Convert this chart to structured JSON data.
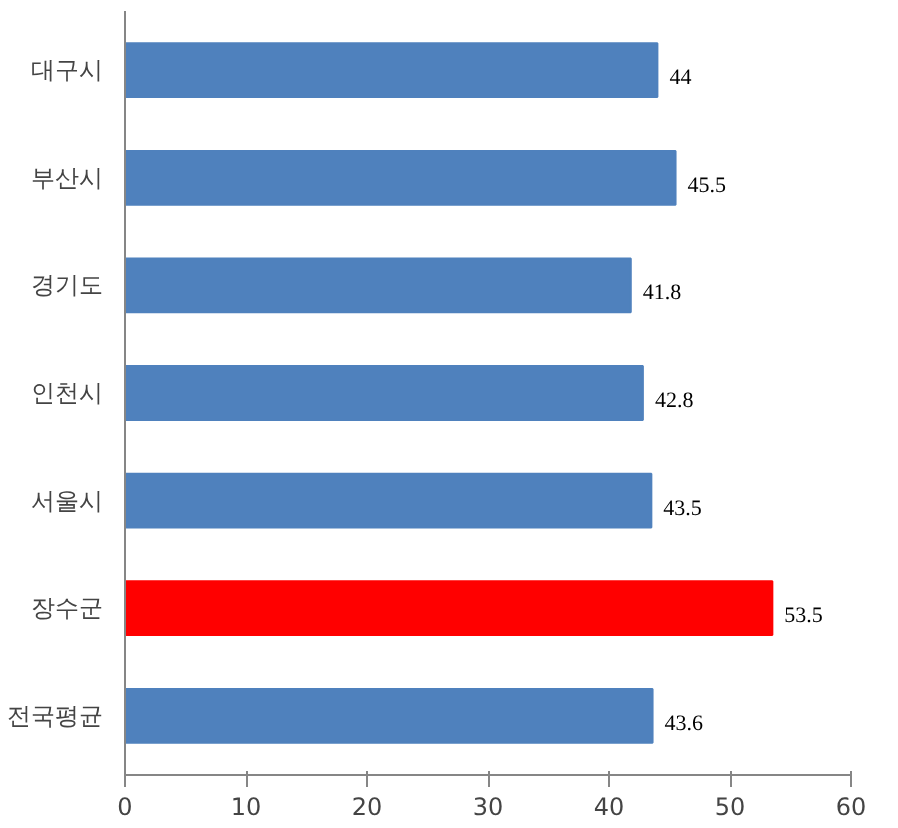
{
  "chart_data": {
    "type": "bar",
    "orientation": "horizontal",
    "categories": [
      "대구시",
      "부산시",
      "경기도",
      "인천시",
      "서울시",
      "장수군",
      "전국평균"
    ],
    "values": [
      44,
      45.5,
      41.8,
      42.8,
      43.5,
      53.5,
      43.6
    ],
    "colors": [
      "#4f81bd",
      "#4f81bd",
      "#4f81bd",
      "#4f81bd",
      "#4f81bd",
      "#ff0000",
      "#4f81bd"
    ],
    "xlim": [
      0,
      60
    ],
    "xticks": [
      0,
      10,
      20,
      30,
      40,
      50,
      60
    ],
    "grid": false,
    "data_labels": true
  }
}
